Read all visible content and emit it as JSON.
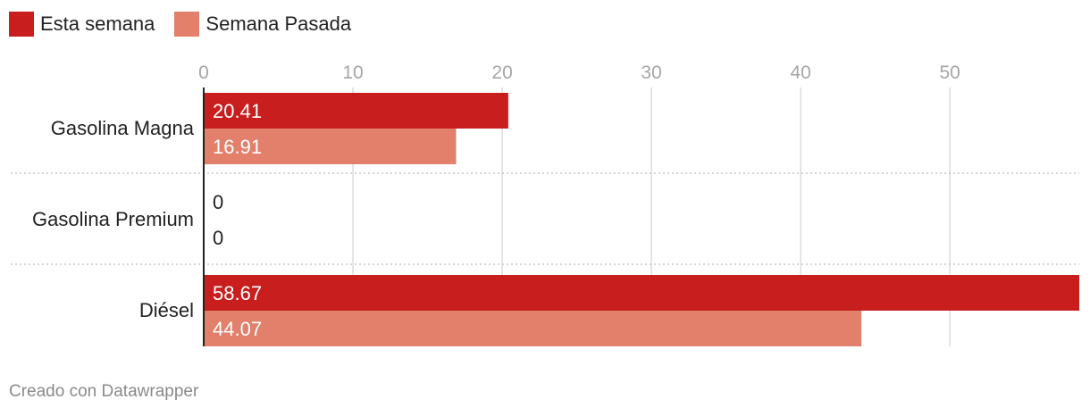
{
  "chart_data": {
    "type": "bar",
    "orientation": "horizontal",
    "categories": [
      "Gasolina Magna",
      "Gasolina Premium",
      "Diésel"
    ],
    "series": [
      {
        "name": "Esta semana",
        "color": "#c81e1e",
        "values": [
          20.41,
          0,
          58.67
        ]
      },
      {
        "name": "Semana Pasada",
        "color": "#e2806b",
        "values": [
          16.91,
          0,
          44.07
        ]
      }
    ],
    "data_labels": [
      [
        "20.41",
        "0",
        "58.67"
      ],
      [
        "16.91",
        "0",
        "44.07"
      ]
    ],
    "xlim": [
      0,
      58.67
    ],
    "xticks": [
      0,
      10,
      20,
      30,
      40,
      50
    ],
    "xtick_labels": [
      "0",
      "10",
      "20",
      "30",
      "40",
      "50"
    ],
    "grid": true,
    "legend_position": "top-left"
  },
  "footer": {
    "credit": "Creado con Datawrapper"
  }
}
